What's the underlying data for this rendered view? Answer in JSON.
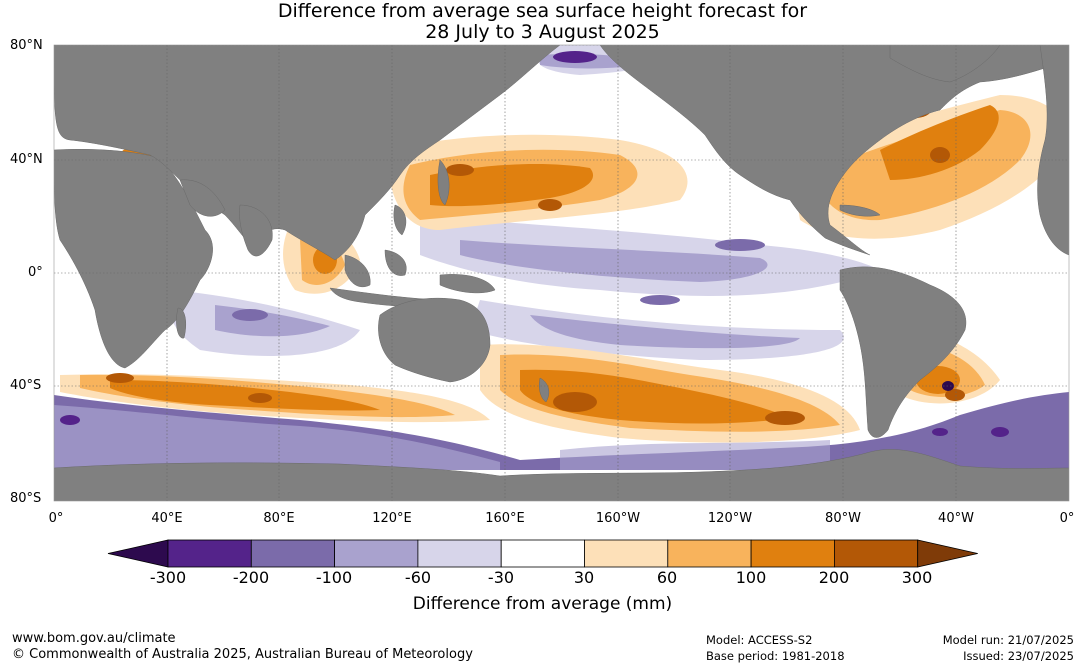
{
  "title": {
    "line1": "Difference from average sea surface height forecast for",
    "line2": "28 July to 3 August 2025"
  },
  "lat_labels": [
    "80°N",
    "40°N",
    "0°",
    "40°S",
    "80°S"
  ],
  "lon_labels": [
    "0°",
    "40°E",
    "80°E",
    "120°E",
    "160°E",
    "160°W",
    "120°W",
    "80°W",
    "40°W",
    "0°"
  ],
  "colorbar": {
    "title": "Difference from average (mm)",
    "tick_labels": [
      "-300",
      "-200",
      "-100",
      "-60",
      "-30",
      "30",
      "60",
      "100",
      "200",
      "300"
    ],
    "colors": [
      "#2d0a4e",
      "#54238a",
      "#7b6baa",
      "#a9a2ce",
      "#d7d5ea",
      "#ffffff",
      "#fde0b8",
      "#f8b35c",
      "#e0800f",
      "#b35806",
      "#7f3b08"
    ]
  },
  "colors": {
    "land": "#808080",
    "ocean_neutral": "#ffffff"
  },
  "footer": {
    "website": "www.bom.gov.au/climate",
    "copyright": "© Commonwealth of Australia 2025, Australian Bureau of Meteorology",
    "model": "Model: ACCESS-S2",
    "base_period": "Base period: 1981-2018",
    "model_run": "Model run: 21/07/2025",
    "issued": "Issued: 23/07/2025"
  }
}
